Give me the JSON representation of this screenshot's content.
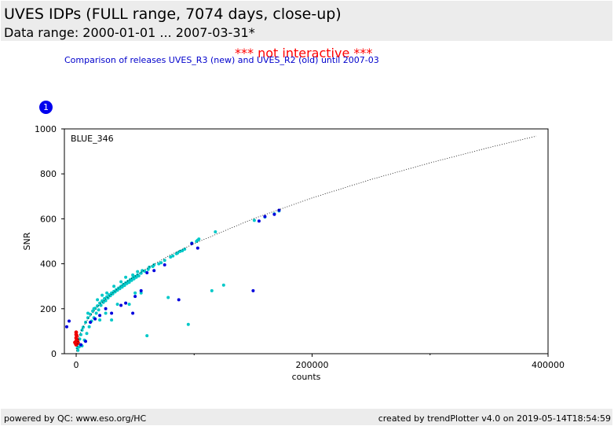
{
  "header": {
    "title": "UVES IDPs (FULL range, 7074 days, close-up)",
    "subtitle": "Data range: 2000-01-01 ... 2007-03-31*"
  },
  "notice": "*** not interactive ***",
  "comparison_note": "Comparison of releases UVES_R3 (new) and UVES_R2 (old) until 2007-03",
  "plot_number": "1",
  "footer": {
    "left": "powered by QC: www.eso.org/HC",
    "right": "created by trendPlotter v4.0 on 2019-05-14T18:54:59"
  },
  "colors": {
    "cyan": "#00c8c8",
    "blue": "#0000dd",
    "red": "#ee0000",
    "accent_badge": "#0000ee"
  },
  "chart_data": {
    "type": "scatter",
    "panel_label": "BLUE_346",
    "xlabel": "counts",
    "ylabel": "SNR",
    "xlim": [
      -10000,
      400000
    ],
    "ylim": [
      0,
      1000
    ],
    "xticks": [
      0,
      200000,
      400000
    ],
    "xtick_labels": [
      "0",
      "200000",
      "400000"
    ],
    "yticks": [
      0,
      200,
      400,
      600,
      800,
      1000
    ],
    "ytick_labels": [
      "0",
      "200",
      "400",
      "600",
      "800",
      "1000"
    ],
    "fit_curve": {
      "style": "dotted",
      "points": [
        [
          0,
          0
        ],
        [
          2000,
          70
        ],
        [
          5000,
          110
        ],
        [
          10000,
          155
        ],
        [
          20000,
          220
        ],
        [
          40000,
          310
        ],
        [
          60000,
          380
        ],
        [
          80000,
          440
        ],
        [
          100000,
          490
        ],
        [
          150000,
          600
        ],
        [
          200000,
          693
        ],
        [
          250000,
          775
        ],
        [
          300000,
          849
        ],
        [
          350000,
          917
        ],
        [
          390000,
          968
        ]
      ]
    },
    "series": [
      {
        "color": "cyan",
        "points": [
          [
            1000,
            25
          ],
          [
            2000,
            45
          ],
          [
            3000,
            65
          ],
          [
            4000,
            85
          ],
          [
            5000,
            105
          ],
          [
            6000,
            118
          ],
          [
            8000,
            140
          ],
          [
            10000,
            160
          ],
          [
            12000,
            175
          ],
          [
            14000,
            190
          ],
          [
            16000,
            202
          ],
          [
            18000,
            213
          ],
          [
            20000,
            225
          ],
          [
            22000,
            235
          ],
          [
            24000,
            245
          ],
          [
            26000,
            253
          ],
          [
            28000,
            262
          ],
          [
            30000,
            270
          ],
          [
            32000,
            277
          ],
          [
            34000,
            285
          ],
          [
            36000,
            292
          ],
          [
            38000,
            300
          ],
          [
            40000,
            308
          ],
          [
            42000,
            315
          ],
          [
            44000,
            322
          ],
          [
            46000,
            330
          ],
          [
            48000,
            337
          ],
          [
            50000,
            343
          ],
          [
            52000,
            350
          ],
          [
            55000,
            358
          ],
          [
            58000,
            367
          ],
          [
            61000,
            375
          ],
          [
            65000,
            388
          ],
          [
            70000,
            400
          ],
          [
            75000,
            415
          ],
          [
            80000,
            430
          ],
          [
            85000,
            445
          ],
          [
            90000,
            458
          ],
          [
            98000,
            492
          ],
          [
            103000,
            505
          ],
          [
            118000,
            542
          ],
          [
            151000,
            593
          ],
          [
            160000,
            608
          ],
          [
            168000,
            622
          ],
          [
            172000,
            635
          ],
          [
            7000,
            60
          ],
          [
            9000,
            90
          ],
          [
            11000,
            120
          ],
          [
            13000,
            145
          ],
          [
            15000,
            160
          ],
          [
            17000,
            180
          ],
          [
            19000,
            195
          ],
          [
            21000,
            215
          ],
          [
            23000,
            228
          ],
          [
            25000,
            236
          ],
          [
            27000,
            248
          ],
          [
            29000,
            258
          ],
          [
            31000,
            266
          ],
          [
            33000,
            275
          ],
          [
            35000,
            282
          ],
          [
            37000,
            289
          ],
          [
            39000,
            296
          ],
          [
            41000,
            304
          ],
          [
            43000,
            312
          ],
          [
            45000,
            318
          ],
          [
            47000,
            326
          ],
          [
            49000,
            333
          ],
          [
            51000,
            340
          ],
          [
            53000,
            346
          ],
          [
            20000,
            150
          ],
          [
            25000,
            180
          ],
          [
            30000,
            150
          ],
          [
            35000,
            220
          ],
          [
            45000,
            220
          ],
          [
            50000,
            270
          ],
          [
            55000,
            270
          ],
          [
            60000,
            80
          ],
          [
            78000,
            250
          ],
          [
            95000,
            130
          ],
          [
            115000,
            280
          ],
          [
            125000,
            305
          ],
          [
            2500,
            30
          ],
          [
            1500,
            15
          ],
          [
            5000,
            35
          ],
          [
            10000,
            180
          ],
          [
            15000,
            200
          ],
          [
            18000,
            240
          ],
          [
            22000,
            260
          ],
          [
            26000,
            270
          ],
          [
            32000,
            300
          ],
          [
            38000,
            320
          ],
          [
            42000,
            340
          ],
          [
            48000,
            350
          ],
          [
            52000,
            365
          ],
          [
            56000,
            370
          ],
          [
            62000,
            385
          ],
          [
            66000,
            395
          ],
          [
            72000,
            405
          ],
          [
            82000,
            435
          ],
          [
            86000,
            448
          ],
          [
            88000,
            455
          ],
          [
            92000,
            465
          ],
          [
            102000,
            500
          ],
          [
            104000,
            510
          ]
        ]
      },
      {
        "color": "blue",
        "points": [
          [
            -6000,
            145
          ],
          [
            -8000,
            120
          ],
          [
            12000,
            140
          ],
          [
            16000,
            155
          ],
          [
            20000,
            170
          ],
          [
            25000,
            200
          ],
          [
            30000,
            180
          ],
          [
            38000,
            215
          ],
          [
            42000,
            225
          ],
          [
            48000,
            180
          ],
          [
            50000,
            255
          ],
          [
            55000,
            280
          ],
          [
            60000,
            360
          ],
          [
            66000,
            370
          ],
          [
            75000,
            395
          ],
          [
            87000,
            240
          ],
          [
            98000,
            490
          ],
          [
            103000,
            470
          ],
          [
            150000,
            280
          ],
          [
            155000,
            590
          ],
          [
            160000,
            610
          ],
          [
            168000,
            620
          ],
          [
            172000,
            638
          ],
          [
            4000,
            40
          ],
          [
            8000,
            55
          ]
        ]
      },
      {
        "color": "red",
        "points": [
          [
            0,
            40
          ],
          [
            0,
            55
          ],
          [
            0,
            70
          ],
          [
            0,
            85
          ],
          [
            0,
            95
          ],
          [
            1000,
            45
          ],
          [
            1000,
            60
          ],
          [
            -1000,
            50
          ],
          [
            500,
            65
          ],
          [
            500,
            80
          ],
          [
            1500,
            50
          ],
          [
            -500,
            45
          ]
        ]
      }
    ]
  }
}
